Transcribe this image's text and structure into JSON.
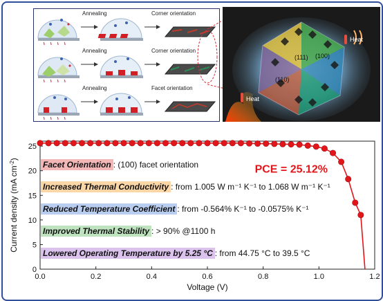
{
  "schematic": {
    "rows": [
      {
        "step": "Annealing",
        "result": "Corner orientation"
      },
      {
        "step": "Annealing",
        "result": "Corner orientation"
      },
      {
        "step": "Annealing",
        "result": "Facet orientation"
      }
    ]
  },
  "crystal": {
    "heat_label_top": "Heat",
    "heat_label_bottom": "Heat",
    "plane_111": "(111)",
    "plane_100": "(100)",
    "plane_110": "(110)"
  },
  "properties": [
    {
      "title": "Facet Orientation",
      "detail": ": (100) facet orientation"
    },
    {
      "title": "Increased Thermal Conductivity",
      "detail": ": from 1.005 W m⁻¹ K⁻¹ to 1.068 W m⁻¹ K⁻¹"
    },
    {
      "title": "Reduced Temperature Coefficient",
      "detail": ": from -0.564% K⁻¹ to -0.0575% K⁻¹"
    },
    {
      "title": "Improved Thermal Stability",
      "detail": ": > 90% @1100 h"
    },
    {
      "title": "Lowered Operating Temperature by 5.25 °C",
      "detail": ": from 44.75 °C to 39.5 °C"
    }
  ],
  "chart_data": {
    "type": "line",
    "xlabel": "Voltage (V)",
    "ylabel_main": "Current density",
    "ylabel_unit": " (mA cm",
    "ylabel_exp": "-2",
    "ylabel_close": ")",
    "pce_annotation": "PCE = 25.12%",
    "xlim": [
      0.0,
      1.2
    ],
    "ylim": [
      0,
      26
    ],
    "xticks": [
      "0.0",
      "0.2",
      "0.4",
      "0.6",
      "0.8",
      "1.0",
      "1.2"
    ],
    "yticks": [
      "0",
      "5",
      "10",
      "15",
      "20",
      "25"
    ],
    "series": [
      {
        "color": "#e0161b",
        "x": [
          0.0,
          0.03,
          0.06,
          0.09,
          0.12,
          0.15,
          0.18,
          0.21,
          0.24,
          0.27,
          0.3,
          0.33,
          0.36,
          0.39,
          0.42,
          0.45,
          0.48,
          0.51,
          0.54,
          0.57,
          0.6,
          0.63,
          0.66,
          0.69,
          0.72,
          0.75,
          0.78,
          0.81,
          0.84,
          0.87,
          0.9,
          0.93,
          0.96,
          0.99,
          1.02,
          1.05,
          1.08,
          1.105,
          1.13,
          1.15,
          1.165
        ],
        "y": [
          25.6,
          25.6,
          25.6,
          25.6,
          25.6,
          25.6,
          25.6,
          25.6,
          25.6,
          25.6,
          25.6,
          25.6,
          25.6,
          25.6,
          25.6,
          25.6,
          25.6,
          25.6,
          25.6,
          25.6,
          25.6,
          25.6,
          25.6,
          25.6,
          25.6,
          25.55,
          25.5,
          25.5,
          25.45,
          25.4,
          25.35,
          25.3,
          25.1,
          24.9,
          24.5,
          23.6,
          21.8,
          18.3,
          13.5,
          11.0,
          0
        ]
      }
    ]
  }
}
